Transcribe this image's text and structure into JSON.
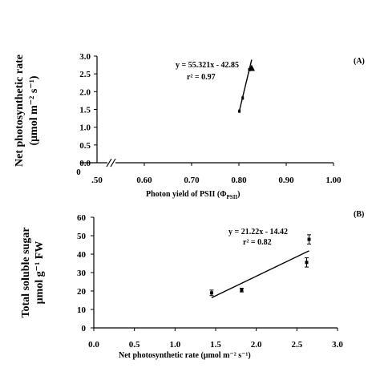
{
  "chart_data": [
    {
      "type": "scatter",
      "panel_label": "(A)",
      "xlabel": "Photon yield of PSII (Φ",
      "xlabel_sub": "PSII",
      "xlabel_end": ")",
      "ylabel_line1": "Net photosynthetic rate",
      "ylabel_line2": "(μmol m⁻² s⁻¹)",
      "equation": "y = 55.321x - 42.85",
      "r2": "r² = 0.97",
      "xlim": [
        0.5,
        1.0
      ],
      "ylim": [
        0.0,
        3.0
      ],
      "x_ticks": [
        ".50",
        "0.60",
        "0.70",
        "0.80",
        "0.90",
        "1.00"
      ],
      "x_tick_values": [
        0.5,
        0.6,
        0.7,
        0.8,
        0.9,
        1.0
      ],
      "y_ticks": [
        "0.0",
        "0.5",
        "1.0",
        "1.5",
        "2.0",
        "2.5",
        "3.0"
      ],
      "y_tick_values": [
        0.0,
        0.5,
        1.0,
        1.5,
        2.0,
        2.5,
        3.0
      ],
      "origin_label": "0",
      "axis_break": true,
      "points": [
        {
          "x": 0.801,
          "y": 1.45
        },
        {
          "x": 0.808,
          "y": 1.82
        },
        {
          "x": 0.822,
          "y": 2.62
        },
        {
          "x": 0.827,
          "y": 2.65
        }
      ],
      "trendline": {
        "slope": 55.321,
        "intercept": -42.85,
        "x_range": [
          0.801,
          0.827
        ]
      }
    },
    {
      "type": "scatter",
      "panel_label": "(B)",
      "xlabel": "Net photosynthetic rate (μmol m⁻² s⁻¹)",
      "ylabel_line1": "Total soluble sugar",
      "ylabel_line2": "μmol g⁻¹ FW",
      "equation": "y = 21.22x - 14.42",
      "r2": "r² = 0.82",
      "xlim": [
        0.0,
        3.0
      ],
      "ylim": [
        0,
        60
      ],
      "x_ticks": [
        "0.0",
        "0.5",
        "1.0",
        "1.5",
        "2.0",
        "2.5",
        "3.0"
      ],
      "x_tick_values": [
        0.0,
        0.5,
        1.0,
        1.5,
        2.0,
        2.5,
        3.0
      ],
      "y_ticks": [
        "0",
        "10",
        "20",
        "30",
        "40",
        "50",
        "60"
      ],
      "y_tick_values": [
        0,
        10,
        20,
        30,
        40,
        50,
        60
      ],
      "points": [
        {
          "x": 1.45,
          "y": 19,
          "err": 1.5
        },
        {
          "x": 1.82,
          "y": 20.5,
          "err": 1.0
        },
        {
          "x": 2.62,
          "y": 35.5,
          "err": 2.5
        },
        {
          "x": 2.65,
          "y": 48,
          "err": 2.5
        }
      ],
      "trendline": {
        "slope": 21.22,
        "intercept": -14.42,
        "x_range": [
          1.45,
          2.65
        ]
      }
    }
  ]
}
